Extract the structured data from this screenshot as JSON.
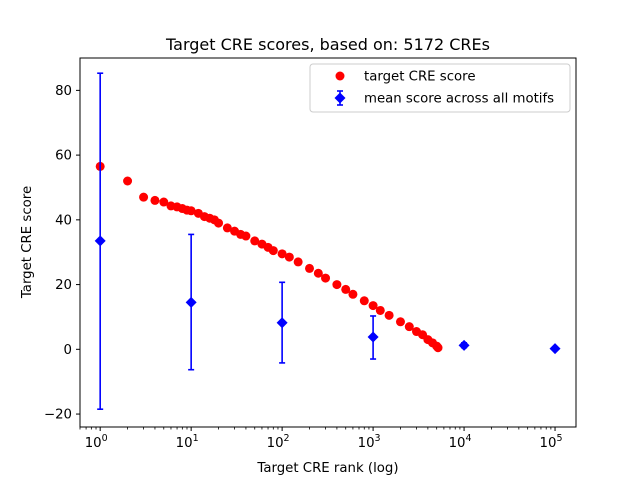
{
  "chart_data": {
    "type": "scatter",
    "title": "Target CRE scores, based on: 5172 CREs",
    "xlabel": "Target CRE rank (log)",
    "ylabel": "Target CRE score",
    "xscale": "log",
    "xlim": [
      0.6,
      170000
    ],
    "ylim": [
      -24,
      90
    ],
    "legend_position": "top-right",
    "x_ticks": [
      {
        "value": 1,
        "base": "10",
        "exp": "0"
      },
      {
        "value": 10,
        "base": "10",
        "exp": "1"
      },
      {
        "value": 100,
        "base": "10",
        "exp": "2"
      },
      {
        "value": 1000,
        "base": "10",
        "exp": "3"
      },
      {
        "value": 10000,
        "base": "10",
        "exp": "4"
      },
      {
        "value": 100000,
        "base": "10",
        "exp": "5"
      }
    ],
    "y_ticks": [
      {
        "value": 80,
        "label": "80"
      },
      {
        "value": 60,
        "label": "60"
      },
      {
        "value": 40,
        "label": "40"
      },
      {
        "value": 20,
        "label": "20"
      },
      {
        "value": 0,
        "label": "0"
      },
      {
        "value": -20,
        "label": "−20"
      }
    ],
    "series": [
      {
        "name": "target CRE score",
        "kind": "scatter",
        "marker": "circle",
        "color": "#ff0000",
        "x": [
          1,
          2,
          3,
          4,
          5,
          6,
          7,
          8,
          9,
          10,
          12,
          14,
          16,
          18,
          20,
          25,
          30,
          35,
          40,
          50,
          60,
          70,
          80,
          100,
          120,
          150,
          200,
          250,
          300,
          400,
          500,
          600,
          800,
          1000,
          1200,
          1500,
          2000,
          2500,
          3000,
          3500,
          4000,
          4500,
          5000,
          5172
        ],
        "y": [
          56.5,
          52,
          47,
          46,
          45.5,
          44.3,
          44,
          43.5,
          43,
          42.8,
          42,
          41,
          40.5,
          40,
          39,
          37.5,
          36.5,
          35.5,
          35,
          33.5,
          32.5,
          31.5,
          30.5,
          29.5,
          28.5,
          27,
          25,
          23.5,
          22,
          20,
          18.5,
          17,
          15,
          13.5,
          12,
          10.5,
          8.5,
          7,
          5.5,
          4.5,
          3,
          2,
          1,
          0.5
        ]
      },
      {
        "name": "mean score across all motifs",
        "kind": "errorbar",
        "marker": "diamond",
        "color": "#0000ff",
        "x": [
          1,
          10,
          100,
          1000,
          10000,
          100000
        ],
        "y": [
          33.5,
          14.5,
          8.2,
          3.8,
          1.2,
          0.2
        ],
        "yerr_low": [
          -18.5,
          -6.3,
          -4.2,
          -3.0,
          0.5,
          0.2
        ],
        "yerr_high": [
          85.3,
          35.5,
          20.7,
          10.3,
          2.0,
          0.2
        ]
      }
    ]
  }
}
